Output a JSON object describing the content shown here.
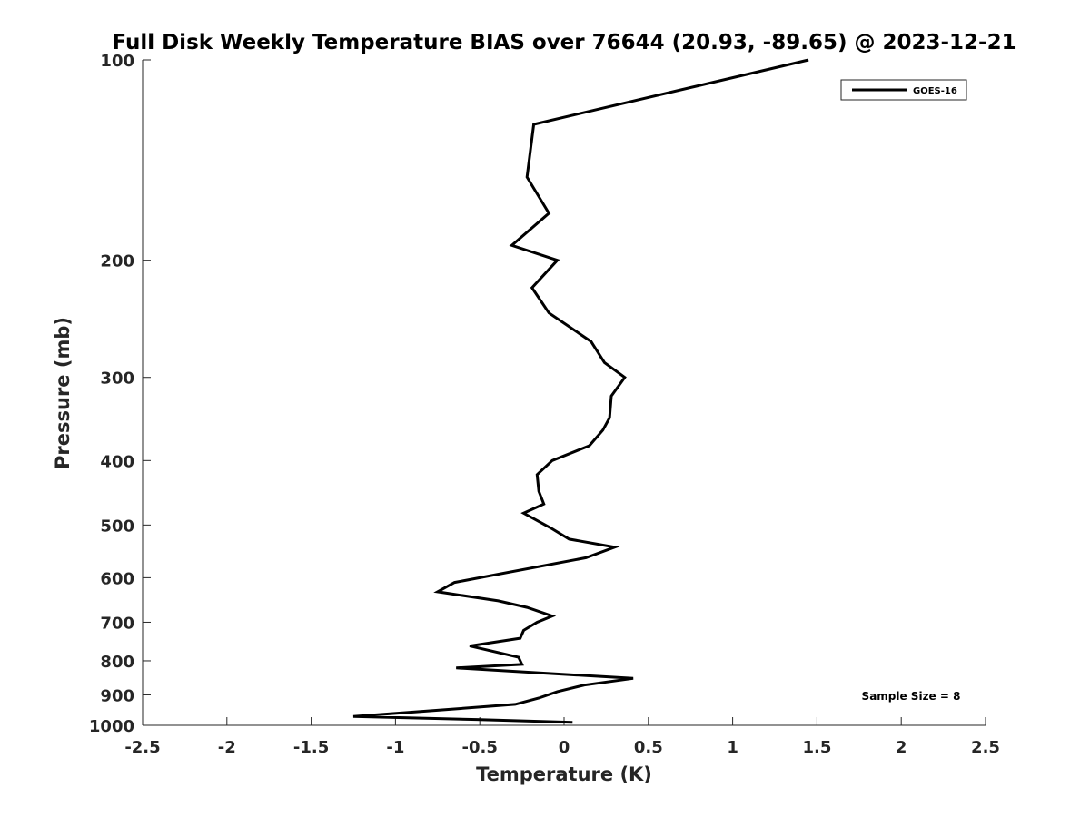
{
  "chart_data": {
    "type": "line",
    "title": "Full Disk Weekly Temperature BIAS over 76644 (20.93, -89.65) @ 2023-12-21",
    "xlabel": "Temperature (K)",
    "ylabel": "Pressure (mb)",
    "xlim": [
      -2.5,
      2.5
    ],
    "ylim": [
      100,
      1000
    ],
    "y_scale": "log",
    "y_reversed": true,
    "x_ticks": [
      "-2.5",
      "-2",
      "-1.5",
      "-1",
      "-0.5",
      "0",
      "0.5",
      "1",
      "1.5",
      "2",
      "2.5"
    ],
    "y_ticks": [
      "100",
      "200",
      "300",
      "400",
      "500",
      "600",
      "700",
      "800",
      "900",
      "1000"
    ],
    "grid": false,
    "legend_position": "top-right",
    "series": [
      {
        "name": "GOES-16",
        "color": "#000000",
        "points": [
          [
            1.45,
            100
          ],
          [
            -0.18,
            125
          ],
          [
            -0.22,
            150
          ],
          [
            -0.09,
            170
          ],
          [
            -0.31,
            190
          ],
          [
            -0.04,
            200
          ],
          [
            -0.19,
            220
          ],
          [
            -0.09,
            240
          ],
          [
            0.16,
            265
          ],
          [
            0.24,
            285
          ],
          [
            0.36,
            300
          ],
          [
            0.28,
            320
          ],
          [
            0.27,
            345
          ],
          [
            0.23,
            360
          ],
          [
            0.15,
            380
          ],
          [
            -0.07,
            400
          ],
          [
            -0.16,
            420
          ],
          [
            -0.15,
            445
          ],
          [
            -0.12,
            465
          ],
          [
            -0.24,
            480
          ],
          [
            -0.08,
            505
          ],
          [
            0.03,
            525
          ],
          [
            0.3,
            540
          ],
          [
            0.13,
            560
          ],
          [
            -0.65,
            610
          ],
          [
            -0.75,
            630
          ],
          [
            -0.39,
            650
          ],
          [
            -0.22,
            665
          ],
          [
            -0.07,
            685
          ],
          [
            -0.16,
            700
          ],
          [
            -0.24,
            720
          ],
          [
            -0.26,
            740
          ],
          [
            -0.56,
            760
          ],
          [
            -0.27,
            790
          ],
          [
            -0.25,
            810
          ],
          [
            -0.64,
            820
          ],
          [
            0.41,
            850
          ],
          [
            0.12,
            870
          ],
          [
            -0.04,
            890
          ],
          [
            -0.15,
            910
          ],
          [
            -0.29,
            930
          ],
          [
            -0.65,
            945
          ],
          [
            -1.25,
            970
          ],
          [
            -0.52,
            980
          ],
          [
            0.05,
            990
          ]
        ]
      }
    ],
    "annotations": [
      "Sample Size = 8"
    ]
  }
}
